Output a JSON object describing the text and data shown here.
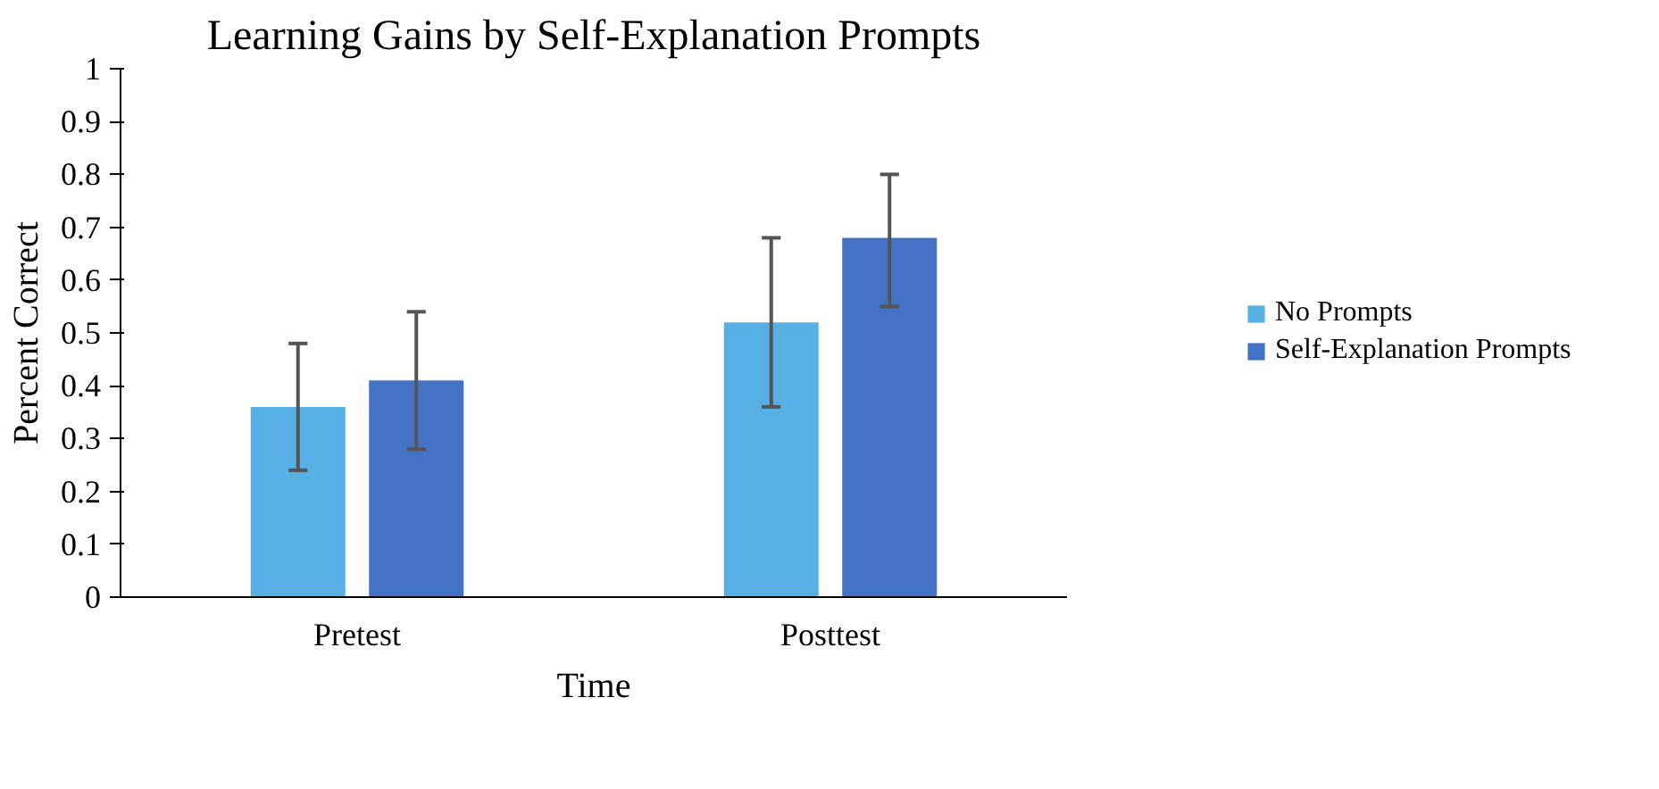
{
  "chart_data": {
    "type": "bar",
    "title": "Learning Gains by Self-Explanation Prompts",
    "xlabel": "Time",
    "ylabel": "Percent Correct",
    "categories": [
      "Pretest",
      "Posttest"
    ],
    "series": [
      {
        "name": "No Prompts",
        "color": "#56b0e4",
        "values": [
          0.36,
          0.52
        ],
        "errors": [
          [
            0.24,
            0.48
          ],
          [
            0.36,
            0.68
          ]
        ]
      },
      {
        "name": "Self-Explanation Prompts",
        "color": "#4472c4",
        "values": [
          0.41,
          0.68
        ],
        "errors": [
          [
            0.28,
            0.54
          ],
          [
            0.55,
            0.8
          ]
        ]
      }
    ],
    "ylim": [
      0,
      1
    ],
    "yticks": [
      0,
      0.1,
      0.2,
      0.3,
      0.4,
      0.5,
      0.6,
      0.7,
      0.8,
      0.9,
      1
    ],
    "grid": false,
    "legend": "right"
  }
}
